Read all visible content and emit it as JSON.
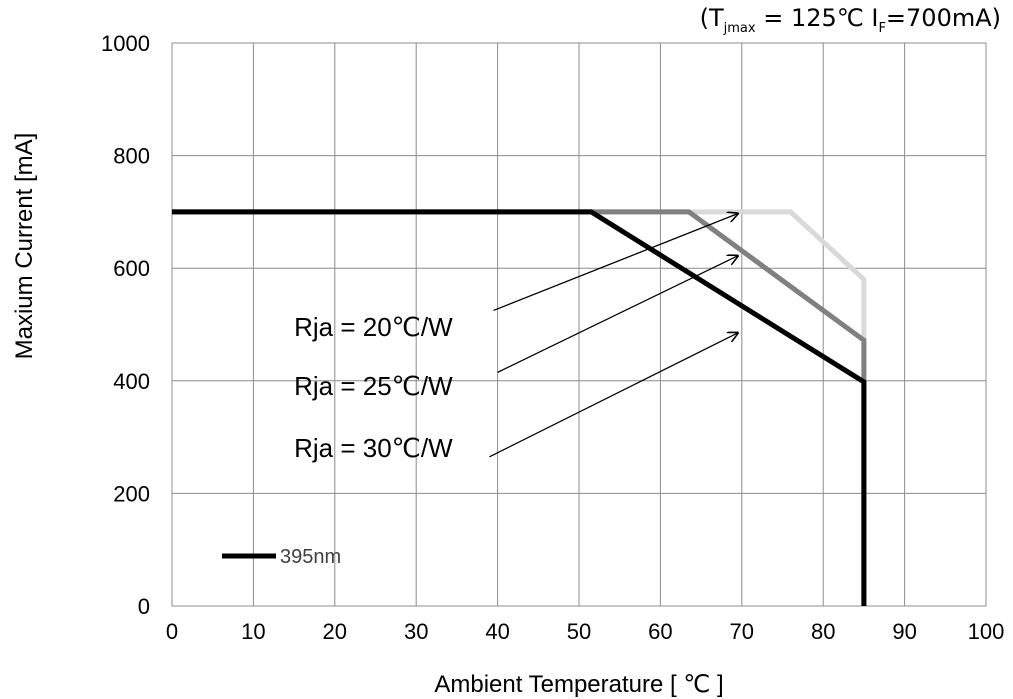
{
  "chart_data": {
    "type": "line",
    "condition": {
      "open": "(",
      "t": "T",
      "j": "j",
      "max": "max",
      "eq1": " = 125℃ I",
      "f": "F",
      "eq2": "=700mA)"
    },
    "xlabel": "Ambient Temperature [ ℃ ]",
    "ylabel": "Maxium Current [mA]",
    "xlim": [
      0,
      100
    ],
    "ylim": [
      0,
      1000
    ],
    "xticks": [
      0,
      10,
      20,
      30,
      40,
      50,
      60,
      70,
      80,
      90,
      100
    ],
    "yticks": [
      0,
      200,
      400,
      600,
      800,
      1000
    ],
    "grid": true,
    "legend": {
      "position": "bottom-left",
      "entries": [
        "395nm"
      ]
    },
    "series": [
      {
        "color": "#d9d9d9",
        "points": [
          [
            0,
            700
          ],
          [
            76,
            700
          ],
          [
            85,
            580
          ],
          [
            85,
            0
          ]
        ]
      },
      {
        "color": "#808080",
        "points": [
          [
            0,
            700
          ],
          [
            63.5,
            700
          ],
          [
            85,
            472
          ],
          [
            85,
            0
          ]
        ]
      },
      {
        "name": "395nm",
        "color": "#000000",
        "points": [
          [
            0,
            700
          ],
          [
            51.5,
            700
          ],
          [
            85,
            398
          ],
          [
            85,
            0
          ]
        ]
      }
    ],
    "annotations": [
      {
        "text": "Rja = 20℃/W",
        "label_at": [
          15,
          480
        ],
        "arrow_from": [
          39.5,
          525
        ],
        "arrow_to": [
          69.5,
          697
        ]
      },
      {
        "text": "Rja = 25℃/W",
        "label_at": [
          15,
          375
        ],
        "arrow_from": [
          40,
          415
        ],
        "arrow_to": [
          69.5,
          622
        ]
      },
      {
        "text": "Rja = 30℃/W",
        "label_at": [
          15,
          265
        ],
        "arrow_from": [
          39,
          265
        ],
        "arrow_to": [
          69.5,
          485
        ]
      }
    ]
  }
}
